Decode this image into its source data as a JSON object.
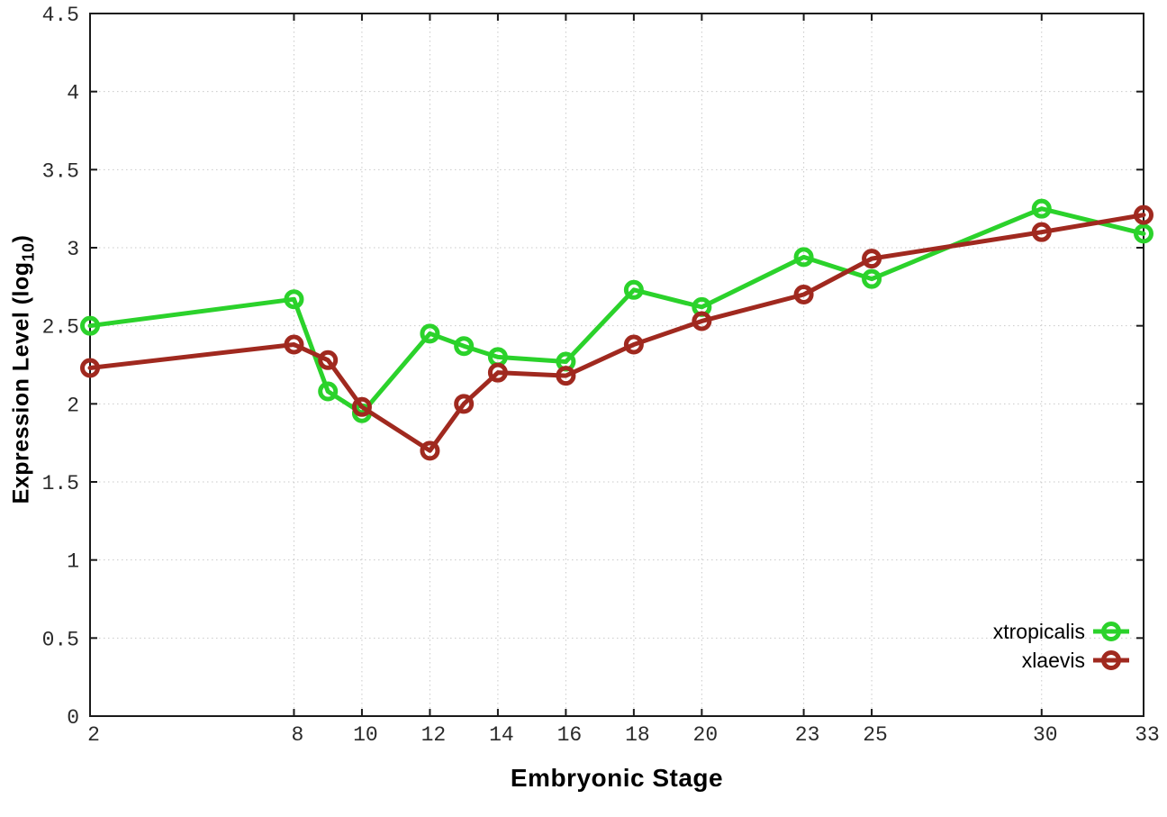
{
  "colors": {
    "background": "#ffffff",
    "axis": "#1a1a1a",
    "grid": "#c9c9c9",
    "tick_text": "#2a2a2a",
    "xtropicalis_green": "#2bd22b",
    "xlaevis_darkred": "#a0291f"
  },
  "chart_data": {
    "type": "line",
    "title": "",
    "xlabel": "Embryonic Stage",
    "ylabel": "Expression Level (log10)",
    "ylabel_parts": {
      "main": "Expression Level (log",
      "sub": "10",
      "end": ")"
    },
    "xlim": [
      2,
      33
    ],
    "ylim": [
      0,
      4.5
    ],
    "x_ticks": [
      2,
      8,
      10,
      12,
      14,
      16,
      18,
      20,
      23,
      25,
      30,
      33
    ],
    "y_ticks": [
      0,
      0.5,
      1,
      1.5,
      2,
      2.5,
      3,
      3.5,
      4,
      4.5
    ],
    "grid": true,
    "legend_position": "inside-bottom-right",
    "marker": "open-circle",
    "x": [
      2,
      8,
      9,
      10,
      12,
      13,
      14,
      16,
      18,
      20,
      23,
      25,
      30,
      33
    ],
    "series": [
      {
        "name": "xtropicalis",
        "color": "#2bd22b",
        "values": [
          2.5,
          2.67,
          2.08,
          1.94,
          2.45,
          2.37,
          2.3,
          2.27,
          2.73,
          2.62,
          2.94,
          2.8,
          3.25,
          3.09
        ]
      },
      {
        "name": "xlaevis",
        "color": "#a0291f",
        "values": [
          2.23,
          2.38,
          2.28,
          1.98,
          1.7,
          2.0,
          2.2,
          2.18,
          2.38,
          2.53,
          2.7,
          2.93,
          3.1,
          3.21
        ]
      }
    ]
  }
}
